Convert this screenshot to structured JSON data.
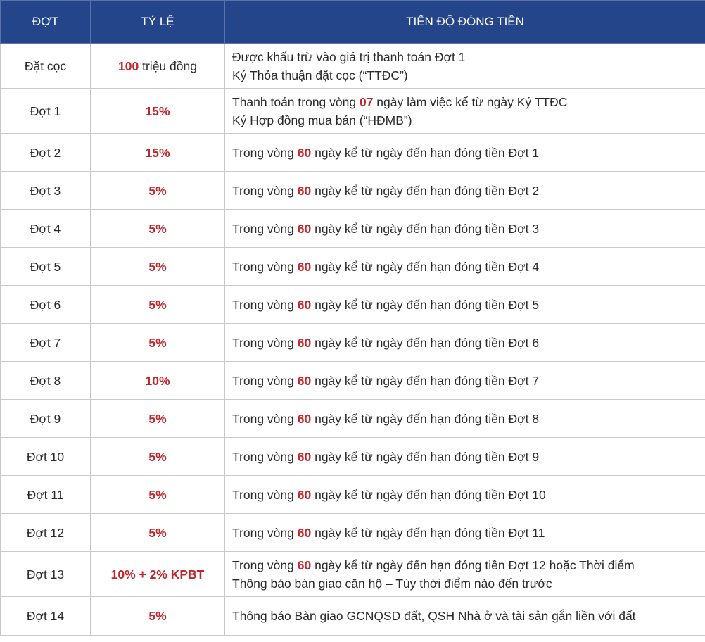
{
  "header": {
    "col_dot": "ĐỢT",
    "col_rate": "TỶ LỆ",
    "col_progress": "TIẾN ĐỘ ĐÓNG TIỀN"
  },
  "colors": {
    "header_bg": "#25458a",
    "accent_red": "#c2272d",
    "text": "#2a2a2a",
    "border": "#c9c9c9"
  },
  "rows": [
    {
      "dot": "Đặt cọc",
      "rate_num": "100",
      "rate_rest": " triệu đồng",
      "l1_pre": "Được khấu trừ vào giá trị thanh toán Đợt 1",
      "l2": "Ký Thỏa thuận đặt cọc (“TTĐC”)"
    },
    {
      "dot": "Đợt 1",
      "rate": "15%",
      "l1_pre": "Thanh toán trong vòng ",
      "l1_num": "07",
      "l1_post": " ngày làm việc kể từ ngày Ký TTĐC",
      "l2": "Ký Hợp đồng mua bán (“HĐMB”)"
    },
    {
      "dot": "Đợt 2",
      "rate": "15%",
      "pre": "Trong vòng ",
      "num": "60",
      "post": " ngày kể từ ngày đến hạn đóng tiền Đợt 1"
    },
    {
      "dot": "Đợt 3",
      "rate": "5%",
      "pre": "Trong vòng ",
      "num": "60",
      "post": " ngày kể từ ngày đến hạn đóng tiền Đợt 2"
    },
    {
      "dot": "Đợt 4",
      "rate": "5%",
      "pre": "Trong vòng ",
      "num": "60",
      "post": " ngày kể từ ngày đến hạn đóng tiền Đợt 3"
    },
    {
      "dot": "Đợt 5",
      "rate": "5%",
      "pre": "Trong vòng ",
      "num": "60",
      "post": " ngày kể từ ngày đến hạn đóng tiền Đợt 4"
    },
    {
      "dot": "Đợt 6",
      "rate": "5%",
      "pre": "Trong vòng ",
      "num": "60",
      "post": " ngày kể từ ngày đến hạn đóng tiền Đợt 5"
    },
    {
      "dot": "Đợt 7",
      "rate": "5%",
      "pre": "Trong vòng ",
      "num": "60",
      "post": " ngày kể từ ngày đến hạn đóng tiền Đợt 6"
    },
    {
      "dot": "Đợt 8",
      "rate": "10%",
      "pre": "Trong vòng ",
      "num": "60",
      "post": " ngày kể từ ngày đến hạn đóng tiền Đợt 7"
    },
    {
      "dot": "Đợt 9",
      "rate": "5%",
      "pre": "Trong vòng ",
      "num": "60",
      "post": " ngày kể từ ngày đến hạn đóng tiền Đợt 8"
    },
    {
      "dot": "Đợt 10",
      "rate": "5%",
      "pre": "Trong vòng ",
      "num": "60",
      "post": " ngày kể từ ngày đến hạn đóng tiền Đợt 9"
    },
    {
      "dot": "Đợt 11",
      "rate": "5%",
      "pre": "Trong vòng ",
      "num": "60",
      "post": " ngày kể từ ngày đến hạn đóng tiền Đợt 10"
    },
    {
      "dot": "Đợt 12",
      "rate": "5%",
      "pre": "Trong vòng ",
      "num": "60",
      "post": " ngày kể từ ngày đến hạn đóng tiền Đợt 11"
    },
    {
      "dot": "Đợt 13",
      "rate": "10% + 2% KPBT",
      "l1_pre": "Trong vòng ",
      "l1_num": "60",
      "l1_post": " ngày kể từ ngày đến hạn đóng tiền Đợt 12 hoặc Thời điểm",
      "l2": "Thông báo bàn giao căn hộ – Tùy thời điểm nào đến trước"
    },
    {
      "dot": "Đợt 14",
      "rate": "5%",
      "pre": "Thông báo Bàn giao GCNQSD đất, QSH Nhà ở và tài sản gắn liền với đất"
    }
  ]
}
